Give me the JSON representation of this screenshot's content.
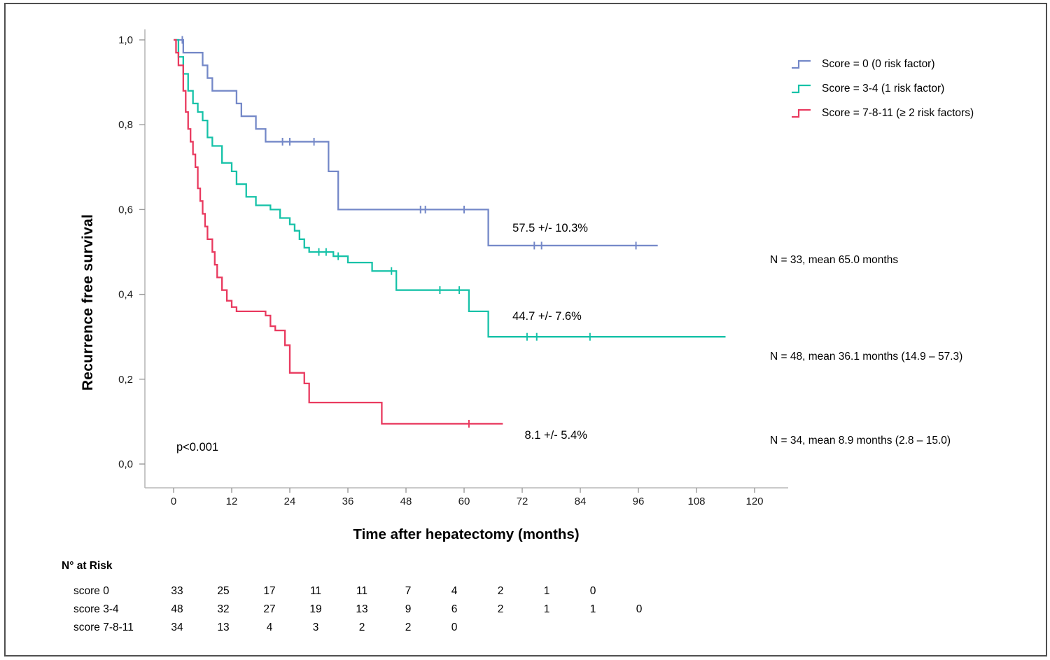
{
  "chart_data": {
    "type": "line",
    "subtype": "kaplan_meier_step",
    "title": "",
    "xlabel": "Time after hepatectomy (months)",
    "ylabel": "Recurrence free survival",
    "xlim": [
      0,
      120
    ],
    "ylim": [
      0.0,
      1.0
    ],
    "grid": false,
    "legend_position": "top-right",
    "p_value_label": "p<0.001",
    "xticks": [
      0,
      12,
      24,
      36,
      48,
      60,
      72,
      84,
      96,
      108,
      120
    ],
    "yticks": [
      {
        "value": 0.0,
        "label": "0,0"
      },
      {
        "value": 0.2,
        "label": "0,2"
      },
      {
        "value": 0.4,
        "label": "0,4"
      },
      {
        "value": 0.6,
        "label": "0,6"
      },
      {
        "value": 0.8,
        "label": "0,8"
      },
      {
        "value": 1.0,
        "label": "1,0"
      }
    ],
    "series": [
      {
        "name": "Score = 0 (0 risk factor)",
        "color": "#7488c8",
        "annotation": "57.5 +/- 10.3%",
        "annotation_pos": [
          70,
          0.548
        ],
        "summary": "N = 33, mean 65.0 months",
        "steps": [
          [
            0,
            1.0
          ],
          [
            2,
            0.97
          ],
          [
            6,
            0.94
          ],
          [
            7,
            0.91
          ],
          [
            8,
            0.88
          ],
          [
            13,
            0.85
          ],
          [
            14,
            0.82
          ],
          [
            17,
            0.79
          ],
          [
            19,
            0.76
          ],
          [
            32,
            0.69
          ],
          [
            34,
            0.6
          ],
          [
            65,
            0.515
          ],
          [
            100,
            0.515
          ]
        ],
        "censors": [
          [
            1.8,
            1.0
          ],
          [
            22.5,
            0.76
          ],
          [
            24,
            0.76
          ],
          [
            29,
            0.76
          ],
          [
            51,
            0.6
          ],
          [
            52,
            0.6
          ],
          [
            60,
            0.6
          ],
          [
            74.5,
            0.515
          ],
          [
            76,
            0.515
          ],
          [
            95.5,
            0.515
          ]
        ]
      },
      {
        "name": "Score = 3-4 (1 risk factor)",
        "color": "#16c2a8",
        "annotation": "44.7 +/- 7.6%",
        "annotation_pos": [
          70,
          0.34
        ],
        "summary": "N = 48, mean 36.1 months (14.9 – 57.3)",
        "steps": [
          [
            0,
            1.0
          ],
          [
            1,
            0.96
          ],
          [
            2,
            0.92
          ],
          [
            3,
            0.88
          ],
          [
            4,
            0.85
          ],
          [
            5,
            0.83
          ],
          [
            6,
            0.81
          ],
          [
            7,
            0.77
          ],
          [
            8,
            0.75
          ],
          [
            10,
            0.71
          ],
          [
            12,
            0.69
          ],
          [
            13,
            0.66
          ],
          [
            15,
            0.63
          ],
          [
            17,
            0.61
          ],
          [
            20,
            0.6
          ],
          [
            22,
            0.58
          ],
          [
            24,
            0.565
          ],
          [
            25,
            0.55
          ],
          [
            26,
            0.53
          ],
          [
            27,
            0.51
          ],
          [
            28,
            0.5
          ],
          [
            33,
            0.49
          ],
          [
            36,
            0.475
          ],
          [
            41,
            0.455
          ],
          [
            46,
            0.41
          ],
          [
            61,
            0.36
          ],
          [
            65,
            0.3
          ],
          [
            114,
            0.3
          ]
        ],
        "censors": [
          [
            30,
            0.5
          ],
          [
            31.5,
            0.5
          ],
          [
            34,
            0.49
          ],
          [
            45,
            0.455
          ],
          [
            55,
            0.41
          ],
          [
            59,
            0.41
          ],
          [
            73,
            0.3
          ],
          [
            75,
            0.3
          ],
          [
            86,
            0.3
          ]
        ]
      },
      {
        "name": "Score = 7-8-11 (≥ 2 risk factors)",
        "color": "#e93a5f",
        "annotation": "8.1 +/- 5.4%",
        "annotation_pos": [
          72.5,
          0.059
        ],
        "summary": "N = 34, mean 8.9 months (2.8 – 15.0)",
        "steps": [
          [
            0,
            1.0
          ],
          [
            0.5,
            0.97
          ],
          [
            1,
            0.94
          ],
          [
            2,
            0.88
          ],
          [
            2.5,
            0.83
          ],
          [
            3,
            0.79
          ],
          [
            3.5,
            0.76
          ],
          [
            4,
            0.73
          ],
          [
            4.5,
            0.7
          ],
          [
            5,
            0.65
          ],
          [
            5.5,
            0.62
          ],
          [
            6,
            0.59
          ],
          [
            6.5,
            0.56
          ],
          [
            7,
            0.53
          ],
          [
            8,
            0.5
          ],
          [
            8.5,
            0.47
          ],
          [
            9,
            0.44
          ],
          [
            10,
            0.41
          ],
          [
            11,
            0.385
          ],
          [
            12,
            0.37
          ],
          [
            13,
            0.36
          ],
          [
            19,
            0.35
          ],
          [
            20,
            0.325
          ],
          [
            21,
            0.315
          ],
          [
            23,
            0.28
          ],
          [
            24,
            0.215
          ],
          [
            27,
            0.19
          ],
          [
            28,
            0.145
          ],
          [
            43,
            0.095
          ],
          [
            68,
            0.095
          ]
        ],
        "censors": [
          [
            61,
            0.095
          ]
        ]
      }
    ],
    "risk_table": {
      "title": "N° at Risk",
      "rows": [
        {
          "label": "score 0",
          "values": [
            "33",
            "25",
            "17",
            "11",
            "11",
            "7",
            "4",
            "2",
            "1",
            "0"
          ]
        },
        {
          "label": "score 3-4",
          "values": [
            "48",
            "32",
            "27",
            "19",
            "13",
            "9",
            "6",
            "2",
            "1",
            "1",
            "0"
          ]
        },
        {
          "label": "score 7-8-11",
          "values": [
            "34",
            "13",
            "4",
            "3",
            "2",
            "2",
            "0"
          ]
        }
      ]
    }
  }
}
